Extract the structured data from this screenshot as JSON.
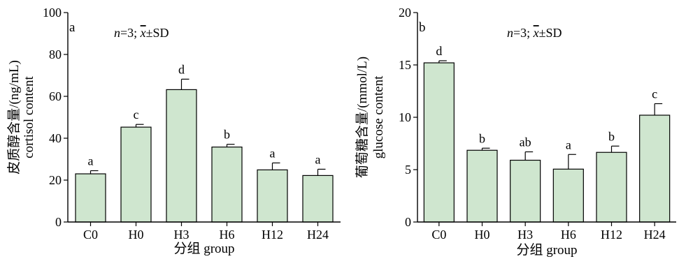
{
  "chart_data": [
    {
      "type": "bar",
      "panel_label": "a",
      "note": {
        "n_part": "n",
        "n_value": "=3; ",
        "mean_symbol": "x",
        "sd_text": "±SD"
      },
      "categories": [
        "C0",
        "H0",
        "H3",
        "H6",
        "H12",
        "H24"
      ],
      "values": [
        23,
        45.3,
        63.2,
        35.8,
        24.9,
        22.2
      ],
      "errors": [
        1.5,
        1.3,
        5,
        1.3,
        3.3,
        3
      ],
      "letters": [
        "a",
        "c",
        "d",
        "b",
        "a",
        "a"
      ],
      "ylabel_line1": "皮质醇含量/(ng/mL)",
      "ylabel_line2": "cortisol content",
      "xlabel": "分组 group",
      "ylim": [
        0,
        100
      ],
      "yticks": [
        0,
        20,
        40,
        60,
        80,
        100
      ],
      "bar_color": "#cfe6cf"
    },
    {
      "type": "bar",
      "panel_label": "b",
      "note": {
        "n_part": "n",
        "n_value": "=3; ",
        "mean_symbol": "x",
        "sd_text": "±SD"
      },
      "categories": [
        "C0",
        "H0",
        "H3",
        "H6",
        "H12",
        "H24"
      ],
      "values": [
        15.2,
        6.85,
        5.9,
        5.05,
        6.65,
        10.2
      ],
      "errors": [
        0.2,
        0.2,
        0.8,
        1.4,
        0.6,
        1.1
      ],
      "letters": [
        "d",
        "b",
        "ab",
        "a",
        "b",
        "c"
      ],
      "ylabel_line1": "葡萄糖含量/(mmol/L)",
      "ylabel_line2": "glucose content",
      "xlabel": "分组 group",
      "ylim": [
        0,
        20
      ],
      "yticks": [
        0,
        5,
        10,
        15,
        20
      ],
      "bar_color": "#cfe6cf"
    }
  ]
}
